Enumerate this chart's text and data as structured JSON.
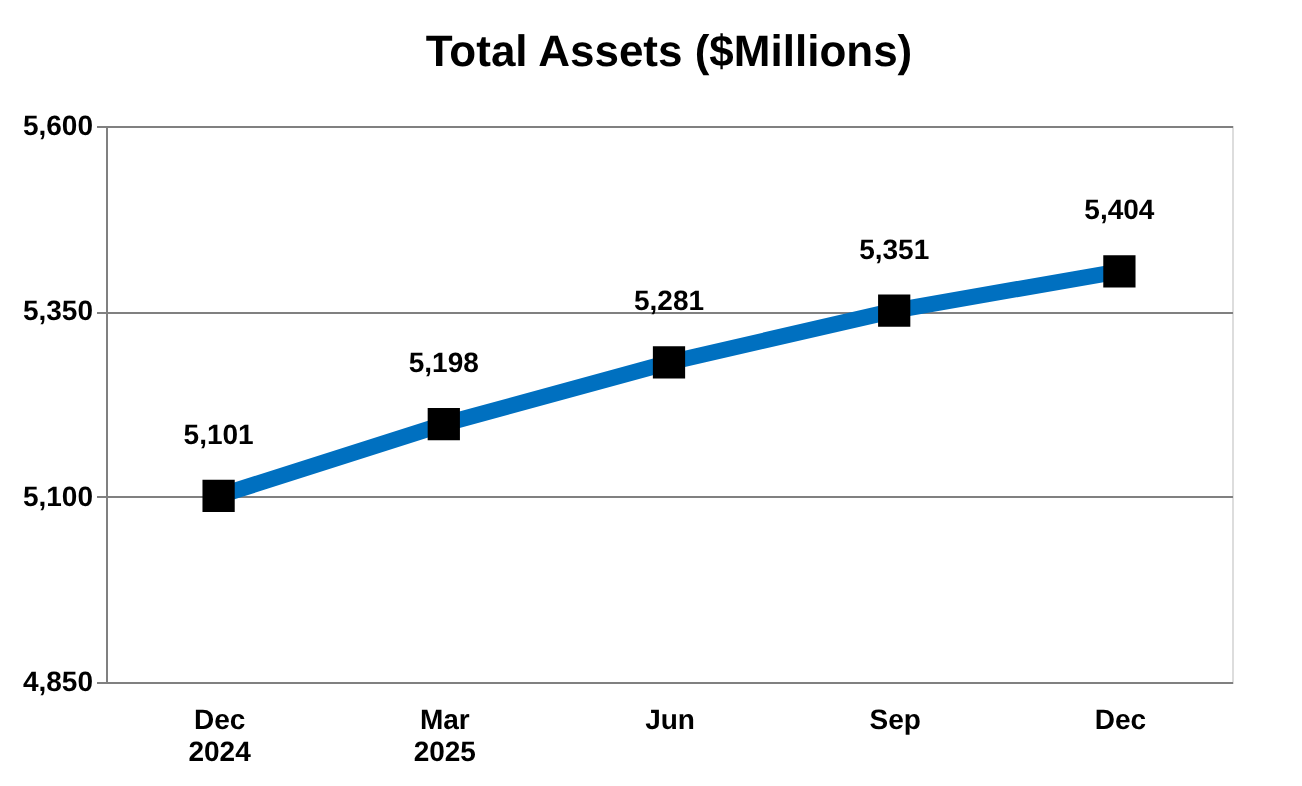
{
  "chart_data": {
    "type": "line",
    "title": "Total Assets ($Millions)",
    "categories": [
      "Dec\n2024",
      "Mar\n2025",
      "Jun",
      "Sep",
      "Dec"
    ],
    "series": [
      {
        "color": "#0070c0",
        "values": [
          5101,
          5198,
          5281,
          5351,
          5404
        ],
        "value_labels": [
          "5,101",
          "5,198",
          "5,281",
          "5,351",
          "5,404"
        ]
      }
    ],
    "ylim": [
      4850,
      5600
    ],
    "yticks": [
      {
        "value": 4850,
        "label": "4,850"
      },
      {
        "value": 5100,
        "label": "5,100"
      },
      {
        "value": 5350,
        "label": "5,350"
      },
      {
        "value": 5600,
        "label": "5,600"
      }
    ],
    "grid": "y",
    "marker": "square",
    "line_style": "solid"
  }
}
